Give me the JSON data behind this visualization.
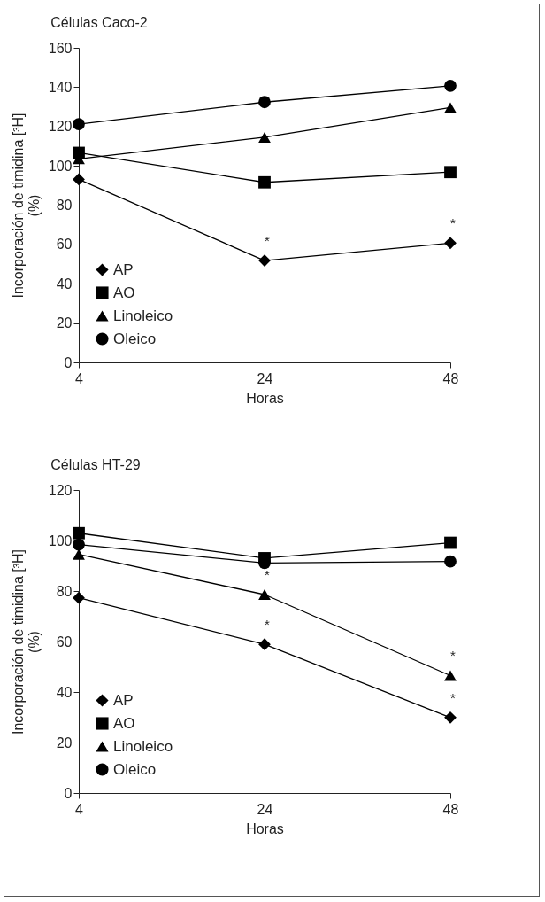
{
  "chart_data": [
    {
      "type": "line",
      "title": "Células Caco-2",
      "xlabel": "Horas",
      "ylabel": "Incorporación de timidina [³H]\n(%)",
      "categories": [
        "4",
        "24",
        "48"
      ],
      "ylim": [
        0,
        160
      ],
      "yticks": [
        0,
        20,
        40,
        60,
        80,
        100,
        120,
        140,
        160
      ],
      "legend": "bottom left",
      "series": [
        {
          "name": "AP",
          "color": "#000000",
          "marker": "diamond",
          "values": [
            93.1,
            51.8,
            60.7
          ]
        },
        {
          "name": "AO",
          "color": "#000000",
          "marker": "square",
          "values": [
            106.6,
            91.6,
            96.8
          ]
        },
        {
          "name": "Linoleico",
          "color": "#000000",
          "marker": "triangle",
          "values": [
            103.5,
            114.5,
            129.6
          ]
        },
        {
          "name": "Oleico",
          "color": "#000000",
          "marker": "circle",
          "values": [
            121.2,
            132.4,
            140.7
          ]
        }
      ],
      "annotations": [
        {
          "text": "*",
          "x": "24",
          "y": 51.8
        },
        {
          "text": "*",
          "x": "48",
          "y": 60.7
        }
      ]
    },
    {
      "type": "line",
      "title": "Células HT-29",
      "xlabel": "Horas",
      "ylabel": "Incorporación de timidina [³H]\n(%)",
      "categories": [
        "4",
        "24",
        "48"
      ],
      "ylim": [
        0,
        120
      ],
      "yticks": [
        0,
        20,
        40,
        60,
        80,
        100,
        120
      ],
      "legend": "bottom left",
      "series": [
        {
          "name": "AP",
          "color": "#000000",
          "marker": "diamond",
          "values": [
            77.3,
            58.9,
            29.9
          ]
        },
        {
          "name": "AO",
          "color": "#000000",
          "marker": "square",
          "values": [
            102.9,
            93.0,
            99.1
          ]
        },
        {
          "name": "Linoleico",
          "color": "#000000",
          "marker": "triangle",
          "values": [
            94.5,
            78.6,
            46.5
          ]
        },
        {
          "name": "Oleico",
          "color": "#000000",
          "marker": "circle",
          "values": [
            98.4,
            91.1,
            91.7
          ]
        }
      ],
      "annotations": [
        {
          "text": "*",
          "x": "24",
          "y": 78.6
        },
        {
          "text": "*",
          "x": "24",
          "y": 58.9
        },
        {
          "text": "*",
          "x": "48",
          "y": 46.5
        },
        {
          "text": "*",
          "x": "48",
          "y": 29.9
        }
      ]
    }
  ]
}
